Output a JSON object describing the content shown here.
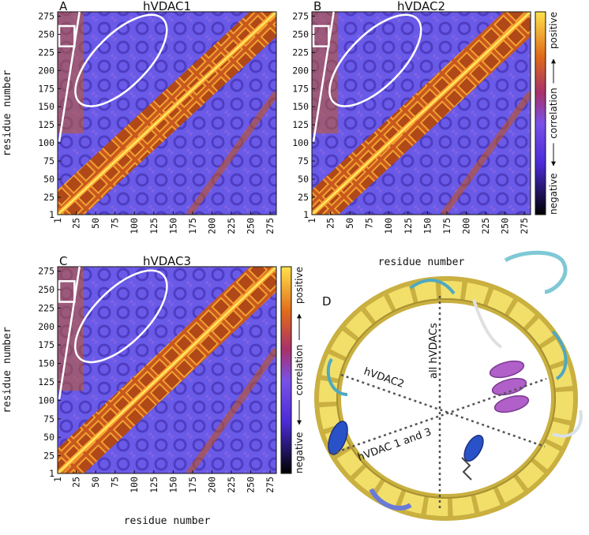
{
  "chart_data": [
    {
      "type": "heatmap",
      "panel_label": "A",
      "title": "hVDAC1",
      "y_label": "residue number",
      "xlim": [
        1,
        283
      ],
      "ylim": [
        1,
        281
      ],
      "xticks": [
        1,
        25,
        50,
        75,
        100,
        125,
        150,
        175,
        200,
        225,
        250,
        275
      ],
      "yticks": [
        1,
        25,
        50,
        75,
        100,
        125,
        150,
        175,
        200,
        225,
        250,
        275
      ]
    },
    {
      "type": "heatmap",
      "panel_label": "B",
      "title": "hVDAC2",
      "x_label": "residue number",
      "xlim": [
        1,
        283
      ],
      "ylim": [
        1,
        281
      ],
      "xticks": [
        1,
        25,
        50,
        75,
        100,
        125,
        150,
        175,
        200,
        225,
        250,
        275
      ],
      "yticks": [
        1,
        25,
        50,
        75,
        100,
        125,
        150,
        175,
        200,
        225,
        250,
        275
      ],
      "colorbar": {
        "low": "negative",
        "label": "correlation",
        "high": "positive"
      }
    },
    {
      "type": "heatmap",
      "panel_label": "C",
      "title": "hVDAC3",
      "x_label": "residue number",
      "y_label": "residue number",
      "xlim": [
        1,
        283
      ],
      "ylim": [
        1,
        281
      ],
      "xticks": [
        1,
        25,
        50,
        75,
        100,
        125,
        150,
        175,
        200,
        225,
        250,
        275
      ],
      "yticks": [
        1,
        25,
        50,
        75,
        100,
        125,
        150,
        175,
        200,
        225,
        250,
        275
      ],
      "colorbar": {
        "low": "negative",
        "label": "correlation",
        "high": "positive"
      }
    }
  ],
  "structure": {
    "panel_label": "D",
    "annotations": [
      "all hVDACs",
      "hVDAC2",
      "hVDAC 1 and 3"
    ]
  }
}
